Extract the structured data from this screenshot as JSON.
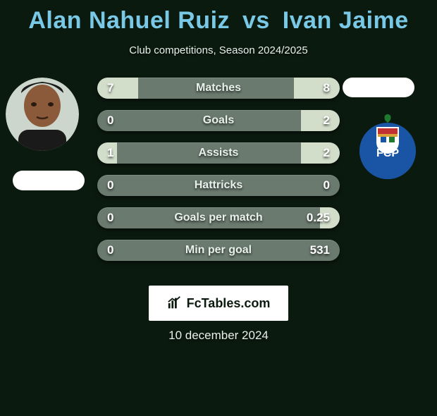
{
  "header": {
    "player1": "Alan Nahuel Ruiz",
    "vs": "vs",
    "player2": "Ivan Jaime",
    "subtitle": "Club competitions, Season 2024/2025"
  },
  "colors": {
    "title": "#78c8e6",
    "background": "#0b1a0f",
    "bar_base": "#6a7a6f",
    "fill_left": "#d2deca",
    "fill_right": "#d2deca",
    "text": "#ffffff"
  },
  "stats": [
    {
      "label": "Matches",
      "left_val": "7",
      "right_val": "8",
      "left_pct": 17,
      "right_pct": 19
    },
    {
      "label": "Goals",
      "left_val": "0",
      "right_val": "2",
      "left_pct": 0,
      "right_pct": 16
    },
    {
      "label": "Assists",
      "left_val": "1",
      "right_val": "2",
      "left_pct": 8,
      "right_pct": 16
    },
    {
      "label": "Hattricks",
      "left_val": "0",
      "right_val": "0",
      "left_pct": 0,
      "right_pct": 0
    },
    {
      "label": "Goals per match",
      "left_val": "0",
      "right_val": "0.25",
      "left_pct": 0,
      "right_pct": 8
    },
    {
      "label": "Min per goal",
      "left_val": "0",
      "right_val": "531",
      "left_pct": 0,
      "right_pct": 0
    }
  ],
  "footer": {
    "brand": "FcTables.com",
    "date": "10 december 2024"
  },
  "crest_right": {
    "primary": "#1a55a5",
    "accent_red": "#c23131",
    "accent_gold": "#d9a33a",
    "accent_green": "#1f7a2f"
  }
}
